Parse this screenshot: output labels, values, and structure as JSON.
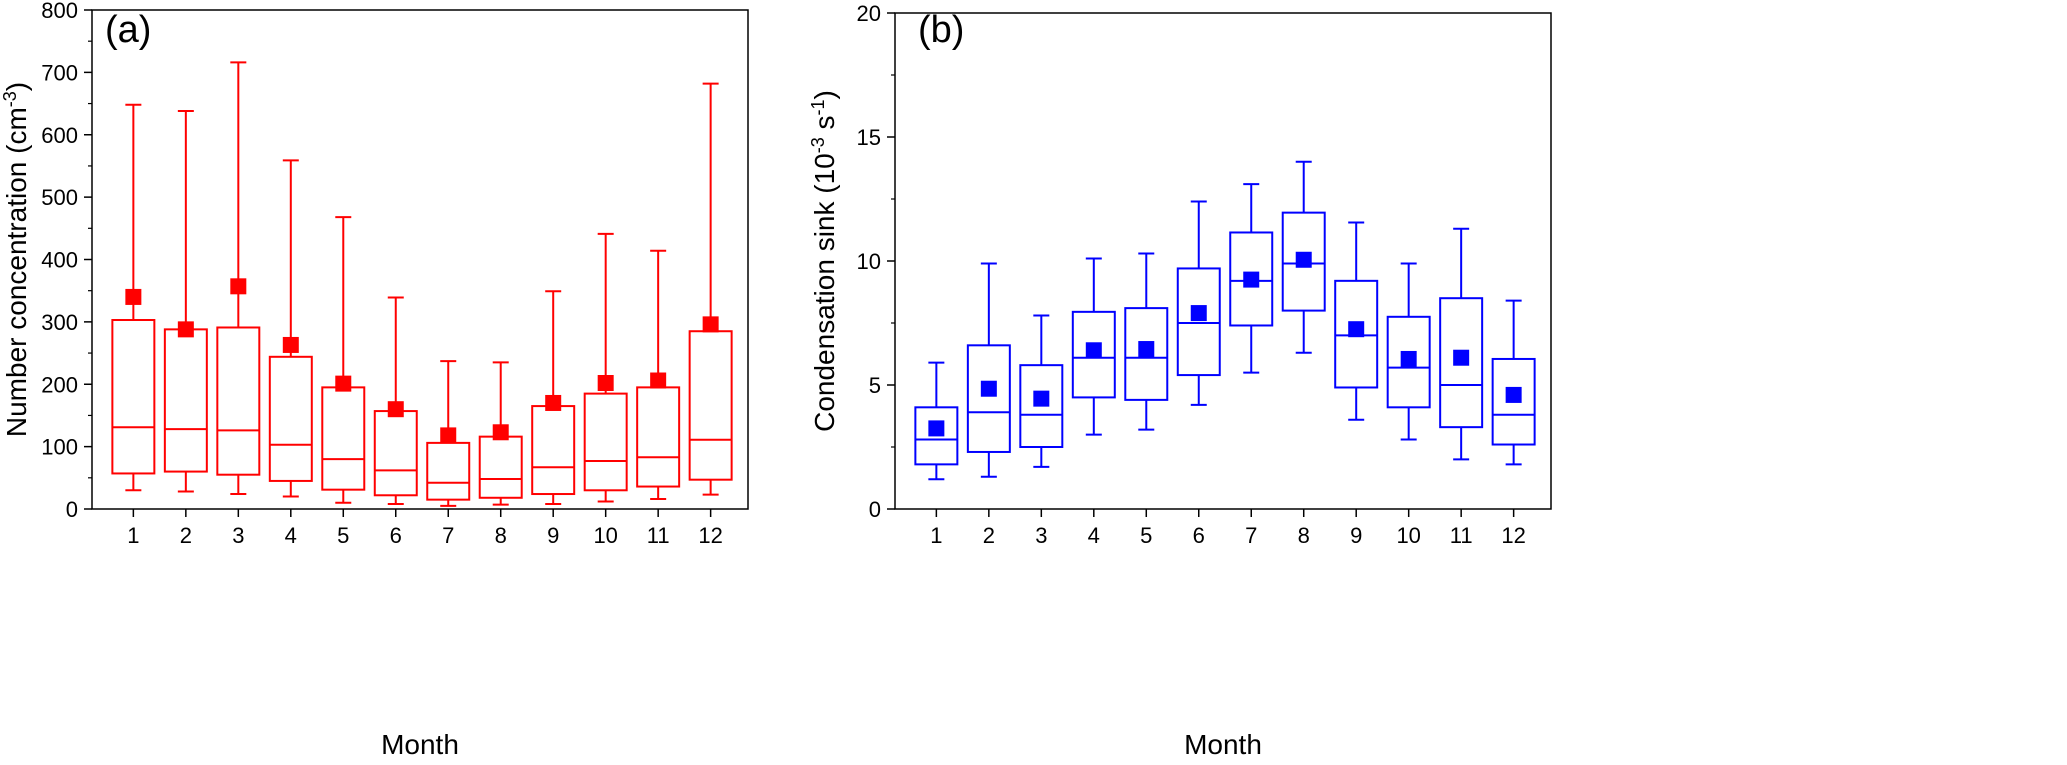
{
  "chart_data": [
    {
      "type": "box",
      "panel_label": "(a)",
      "xlabel": "Month",
      "ylabel_main": "Number concentration (cm",
      "ylabel_sup": "-3",
      "ylabel_end": ")",
      "ylim": [
        0,
        800
      ],
      "yticks": [
        "0",
        "100",
        "200",
        "300",
        "400",
        "500",
        "600",
        "700",
        "800"
      ],
      "categories": [
        "1",
        "2",
        "3",
        "4",
        "5",
        "6",
        "7",
        "8",
        "9",
        "10",
        "11",
        "12"
      ],
      "color": "#ff0000",
      "boxes": [
        {
          "whisker_low": 30,
          "q1": 57,
          "median": 131,
          "q3": 303,
          "whisker_high": 648,
          "mean": 340
        },
        {
          "whisker_low": 28,
          "q1": 60,
          "median": 128,
          "q3": 288,
          "whisker_high": 638,
          "mean": 288
        },
        {
          "whisker_low": 24,
          "q1": 55,
          "median": 126,
          "q3": 291,
          "whisker_high": 716,
          "mean": 357
        },
        {
          "whisker_low": 20,
          "q1": 45,
          "median": 103,
          "q3": 244,
          "whisker_high": 559,
          "mean": 263
        },
        {
          "whisker_low": 10,
          "q1": 31,
          "median": 80,
          "q3": 195,
          "whisker_high": 468,
          "mean": 201
        },
        {
          "whisker_low": 8,
          "q1": 22,
          "median": 62,
          "q3": 157,
          "whisker_high": 339,
          "mean": 160
        },
        {
          "whisker_low": 5,
          "q1": 15,
          "median": 42,
          "q3": 106,
          "whisker_high": 237,
          "mean": 118
        },
        {
          "whisker_low": 7,
          "q1": 18,
          "median": 48,
          "q3": 116,
          "whisker_high": 235,
          "mean": 123
        },
        {
          "whisker_low": 8,
          "q1": 24,
          "median": 67,
          "q3": 165,
          "whisker_high": 349,
          "mean": 170
        },
        {
          "whisker_low": 12,
          "q1": 30,
          "median": 77,
          "q3": 185,
          "whisker_high": 441,
          "mean": 202
        },
        {
          "whisker_low": 16,
          "q1": 36,
          "median": 83,
          "q3": 195,
          "whisker_high": 414,
          "mean": 206
        },
        {
          "whisker_low": 23,
          "q1": 47,
          "median": 111,
          "q3": 285,
          "whisker_high": 682,
          "mean": 296
        }
      ]
    },
    {
      "type": "box",
      "panel_label": "(b)",
      "xlabel": "Month",
      "ylabel_main": "Condensation sink (10",
      "ylabel_sup": "-3",
      "ylabel_mid": " s",
      "ylabel_sup2": "-1",
      "ylabel_end": ")",
      "ylim": [
        0,
        20
      ],
      "yticks": [
        "0",
        "5",
        "10",
        "15",
        "20"
      ],
      "categories": [
        "1",
        "2",
        "3",
        "4",
        "5",
        "6",
        "7",
        "8",
        "9",
        "10",
        "11",
        "12"
      ],
      "color": "#0000ff",
      "boxes": [
        {
          "whisker_low": 1.2,
          "q1": 1.8,
          "median": 2.8,
          "q3": 4.1,
          "whisker_high": 5.9,
          "mean": 3.25
        },
        {
          "whisker_low": 1.3,
          "q1": 2.3,
          "median": 3.9,
          "q3": 6.6,
          "whisker_high": 9.9,
          "mean": 4.85
        },
        {
          "whisker_low": 1.7,
          "q1": 2.5,
          "median": 3.8,
          "q3": 5.8,
          "whisker_high": 7.8,
          "mean": 4.45
        },
        {
          "whisker_low": 3.0,
          "q1": 4.5,
          "median": 6.1,
          "q3": 7.95,
          "whisker_high": 10.1,
          "mean": 6.4
        },
        {
          "whisker_low": 3.2,
          "q1": 4.4,
          "median": 6.1,
          "q3": 8.1,
          "whisker_high": 10.3,
          "mean": 6.45
        },
        {
          "whisker_low": 4.2,
          "q1": 5.4,
          "median": 7.5,
          "q3": 9.7,
          "whisker_high": 12.4,
          "mean": 7.9
        },
        {
          "whisker_low": 5.5,
          "q1": 7.4,
          "median": 9.2,
          "q3": 11.15,
          "whisker_high": 13.1,
          "mean": 9.25
        },
        {
          "whisker_low": 6.3,
          "q1": 8.0,
          "median": 9.9,
          "q3": 11.95,
          "whisker_high": 14.0,
          "mean": 10.05
        },
        {
          "whisker_low": 3.6,
          "q1": 4.9,
          "median": 7.0,
          "q3": 9.2,
          "whisker_high": 11.55,
          "mean": 7.25
        },
        {
          "whisker_low": 2.8,
          "q1": 4.1,
          "median": 5.7,
          "q3": 7.75,
          "whisker_high": 9.9,
          "mean": 6.05
        },
        {
          "whisker_low": 2.0,
          "q1": 3.3,
          "median": 5.0,
          "q3": 8.5,
          "whisker_high": 11.3,
          "mean": 6.1
        },
        {
          "whisker_low": 1.8,
          "q1": 2.6,
          "median": 3.8,
          "q3": 6.05,
          "whisker_high": 8.4,
          "mean": 4.6
        }
      ]
    }
  ]
}
